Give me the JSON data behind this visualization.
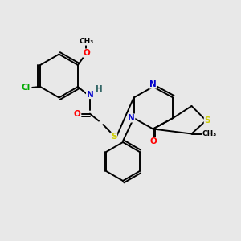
{
  "bg_color": "#e8e8e8",
  "atom_colors": {
    "C": "#000000",
    "N": "#0000cc",
    "O": "#ff0000",
    "S": "#cccc00",
    "Cl": "#00aa00",
    "H": "#336666"
  },
  "bond_color": "#000000",
  "figsize": [
    3.0,
    3.0
  ],
  "dpi": 100
}
